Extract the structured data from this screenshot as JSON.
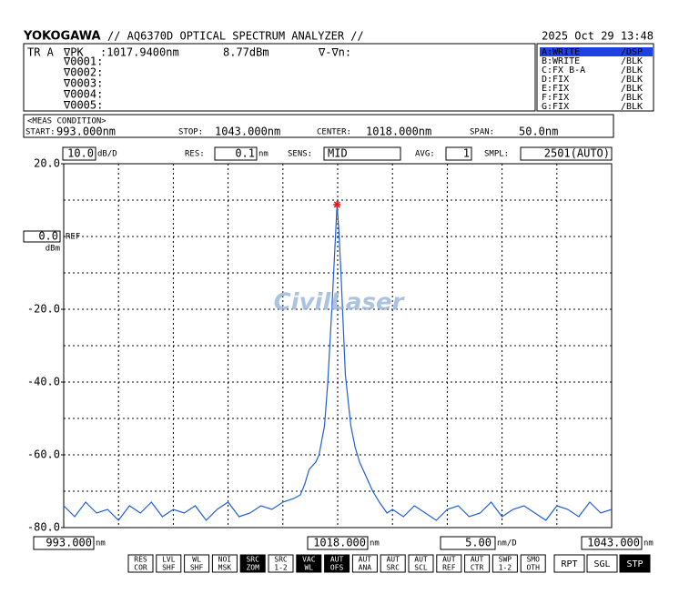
{
  "header": {
    "brand": "YOKOGAWA",
    "model": "// AQ6370D OPTICAL SPECTRUM ANALYZER //",
    "datetime": "2025 Oct 29 13:48"
  },
  "marker_panel": {
    "trace": "TR A",
    "peak_label": "∇PK",
    "wavelength": ":1017.9400nm",
    "level": "8.77dBm",
    "delta": "∇-∇n:",
    "rows": [
      "∇0001:",
      "∇0002:",
      "∇0003:",
      "∇0004:",
      "∇0005:"
    ]
  },
  "traces": [
    {
      "label": "A:WRITE",
      "mode": "/DSP",
      "color": "#ffffff",
      "background": "#2040e0"
    },
    {
      "label": "B:WRITE",
      "mode": "/BLK",
      "color": "#e02020",
      "background": "none"
    },
    {
      "label": "C:FX B-A",
      "mode": "/BLK",
      "color": "#20a020",
      "background": "none"
    },
    {
      "label": "D:FIX",
      "mode": "/BLK",
      "color": "#9030b0",
      "background": "none"
    },
    {
      "label": "E:FIX",
      "mode": "/BLK",
      "color": "#2090a0",
      "background": "none"
    },
    {
      "label": "F:FIX",
      "mode": "/BLK",
      "color": "#e07020",
      "background": "none"
    },
    {
      "label": "G:FIX",
      "mode": "/BLK",
      "color": "#4080e0",
      "background": "none"
    }
  ],
  "meas": {
    "title": "<MEAS CONDITION>",
    "start_label": "START:",
    "start": "993.000nm",
    "stop_label": "STOP:",
    "stop": "1043.000nm",
    "center_label": "CENTER:",
    "center": "1018.000nm",
    "span_label": "SPAN:",
    "span": "50.0nm"
  },
  "settings": {
    "scale": "10.0",
    "scale_unit": "dB/D",
    "res_label": "RES:",
    "res": "0.1",
    "res_unit": "nm",
    "sens_label": "SENS:",
    "sens": "MID",
    "avg_label": "AVG:",
    "avg": "1",
    "smpl_label": "SMPL:",
    "smpl": "2501(AUTO)",
    "span_div": "5.00",
    "span_div_unit": "nm/D",
    "x_unit": "nm"
  },
  "watermark": "CivilLaser",
  "chart_data": {
    "type": "line",
    "color": "#1f5fd6",
    "x": [
      993,
      994,
      995,
      996,
      997,
      998,
      999,
      1000,
      1001,
      1002,
      1003,
      1004,
      1005,
      1006,
      1007,
      1008,
      1009,
      1010,
      1011,
      1012,
      1013,
      1014,
      1014.6,
      1015,
      1015.4,
      1016,
      1016.3,
      1016.8,
      1017.1,
      1017.5,
      1017.8,
      1017.94,
      1018.1,
      1018.3,
      1018.7,
      1019.2,
      1019.6,
      1020,
      1020.6,
      1021.2,
      1021.8,
      1022.5,
      1023,
      1024,
      1025,
      1026,
      1027,
      1028,
      1029,
      1030,
      1031,
      1032,
      1033,
      1034,
      1035,
      1036,
      1037,
      1038,
      1039,
      1040,
      1041,
      1042,
      1043
    ],
    "values": [
      -74,
      -77,
      -73,
      -76,
      -75,
      -78,
      -74,
      -76,
      -73,
      -77,
      -75,
      -76,
      -74,
      -78,
      -75,
      -73,
      -77,
      -76,
      -74,
      -75,
      -73,
      -72,
      -71,
      -68,
      -64,
      -62,
      -60,
      -52,
      -40,
      -18,
      0,
      8.77,
      2,
      -10,
      -38,
      -52,
      -58,
      -62,
      -66,
      -70,
      -73,
      -76,
      -75,
      -77,
      -74,
      -76,
      -78,
      -75,
      -74,
      -77,
      -76,
      -73,
      -77,
      -75,
      -74,
      -76,
      -78,
      -74,
      -75,
      -77,
      -73,
      -76,
      -75
    ],
    "marker": {
      "x": 1017.94,
      "y": 8.77,
      "color": "#e02020"
    },
    "xlim": [
      993,
      1043
    ],
    "ylim": [
      -80,
      20
    ],
    "xticks": [
      {
        "value": 993,
        "label": "993.000"
      },
      {
        "value": 1018,
        "label": "1018.000"
      },
      {
        "value": 1043,
        "label": "1043.000"
      }
    ],
    "yticks": [
      {
        "value": 20,
        "label": "20.0"
      },
      {
        "value": -20,
        "label": "-20.0"
      },
      {
        "value": -40,
        "label": "-40.0"
      },
      {
        "value": -60,
        "label": "-60.0"
      },
      {
        "value": -80,
        "label": "-80.0"
      }
    ],
    "ref": {
      "value": 0,
      "label": "0.0",
      "text": "REF",
      "unit": "dBm"
    },
    "xgrid": [
      998,
      1003,
      1008,
      1013,
      1018,
      1023,
      1028,
      1033,
      1038
    ],
    "ygrid": [
      10,
      0,
      -10,
      -20,
      -30,
      -40,
      -50,
      -60,
      -70
    ],
    "grid": true
  },
  "softkeys": [
    {
      "top": "RES",
      "bottom": "COR",
      "active": false
    },
    {
      "top": "LVL",
      "bottom": "SHF",
      "active": false
    },
    {
      "top": "WL",
      "bottom": "SHF",
      "active": false
    },
    {
      "top": "NOI",
      "bottom": "MSK",
      "active": false
    },
    {
      "top": "SRC",
      "bottom": "ZOM",
      "active": true
    },
    {
      "top": "SRC",
      "bottom": "1-2",
      "active": false
    },
    {
      "top": "VAC",
      "bottom": "WL",
      "active": true
    },
    {
      "top": "AUT",
      "bottom": "OFS",
      "active": true
    },
    {
      "top": "AUT",
      "bottom": "ANA",
      "active": false
    },
    {
      "top": "AUT",
      "bottom": "SRC",
      "active": false
    },
    {
      "top": "AUT",
      "bottom": "SCL",
      "active": false
    },
    {
      "top": "AUT",
      "bottom": "REF",
      "active": false
    },
    {
      "top": "AUT",
      "bottom": "CTR",
      "active": false
    },
    {
      "top": "SWP",
      "bottom": "1-2",
      "active": false
    },
    {
      "top": "SMO",
      "bottom": "OTH",
      "active": false
    }
  ],
  "sweep_keys": [
    {
      "label": "RPT",
      "active": false
    },
    {
      "label": "SGL",
      "active": false
    },
    {
      "label": "STP",
      "active": true
    }
  ]
}
